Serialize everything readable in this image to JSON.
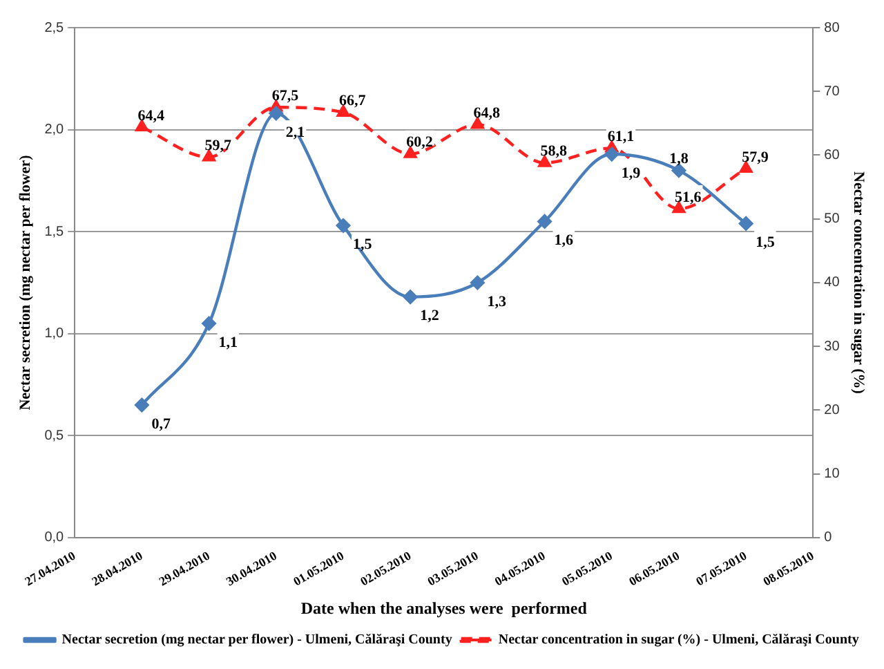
{
  "chart_data": {
    "type": "line",
    "xlabel": "Date when the analyses were  performed",
    "ylabel": "Nectar secretion (mg nectar per flower)",
    "y2label": "Nectar concentration in sugar (%)",
    "x": [
      "2010-04-28",
      "2010-04-29",
      "2010-04-30",
      "2010-05-01",
      "2010-05-02",
      "2010-05-03",
      "2010-05-04",
      "2010-05-05",
      "2010-05-06",
      "2010-05-07"
    ],
    "xlim": [
      "2010-04-27",
      "2010-05-08"
    ],
    "xticks": [
      {
        "value": "2010-04-27",
        "label": "27.04.2010"
      },
      {
        "value": "2010-04-28",
        "label": "28.04.2010"
      },
      {
        "value": "2010-04-29",
        "label": "29.04.2010"
      },
      {
        "value": "2010-04-30",
        "label": "30.04.2010"
      },
      {
        "value": "2010-05-01",
        "label": "01.05.2010"
      },
      {
        "value": "2010-05-02",
        "label": "02.05.2010"
      },
      {
        "value": "2010-05-03",
        "label": "03.05.2010"
      },
      {
        "value": "2010-05-04",
        "label": "04.05.2010"
      },
      {
        "value": "2010-05-05",
        "label": "05.05.2010"
      },
      {
        "value": "2010-05-06",
        "label": "06.05.2010"
      },
      {
        "value": "2010-05-07",
        "label": "07.05.2010"
      },
      {
        "value": "2010-05-08",
        "label": "08.05.2010"
      }
    ],
    "ylim": [
      0,
      2.5
    ],
    "yticks": [
      {
        "value": 0,
        "label": "0,0"
      },
      {
        "value": 0.5,
        "label": "0,5"
      },
      {
        "value": 1,
        "label": "1,0"
      },
      {
        "value": 1.5,
        "label": "1,5"
      },
      {
        "value": 2,
        "label": "2,0"
      },
      {
        "value": 2.5,
        "label": "2,5"
      }
    ],
    "y2lim": [
      0,
      80
    ],
    "y2ticks": [
      0,
      10,
      20,
      30,
      40,
      50,
      60,
      70,
      80
    ],
    "grid": "y",
    "legend": "bottom",
    "series": [
      {
        "name": "Nectar secretion (mg nectar per flower) - Ulmeni, Călăraşi County",
        "color": "#4a7ebb",
        "marker": "diamond",
        "line_style": "solid",
        "values": [
          0.65,
          1.05,
          2.08,
          1.53,
          1.18,
          1.25,
          1.55,
          1.88,
          1.8,
          1.54
        ],
        "value_labels": [
          "0,7",
          "1,1",
          "2,1",
          "1,5",
          "1,2",
          "1,3",
          "1,6",
          "1,9",
          "1,8",
          "1,5"
        ]
      },
      {
        "name": "Nectar concentration in sugar (%) - Ulmeni, Călăraşi County",
        "color": "#ff2020",
        "marker": "triangle",
        "line_style": "dashed",
        "axis": "y2",
        "values": [
          64.4,
          59.7,
          67.5,
          66.7,
          60.2,
          64.8,
          58.8,
          61.1,
          51.6,
          57.9
        ],
        "value_labels": [
          "64,4",
          "59,7",
          "67,5",
          "66,7",
          "60,2",
          "64,8",
          "58,8",
          "61,1",
          "51,6",
          "57,9"
        ]
      }
    ]
  }
}
